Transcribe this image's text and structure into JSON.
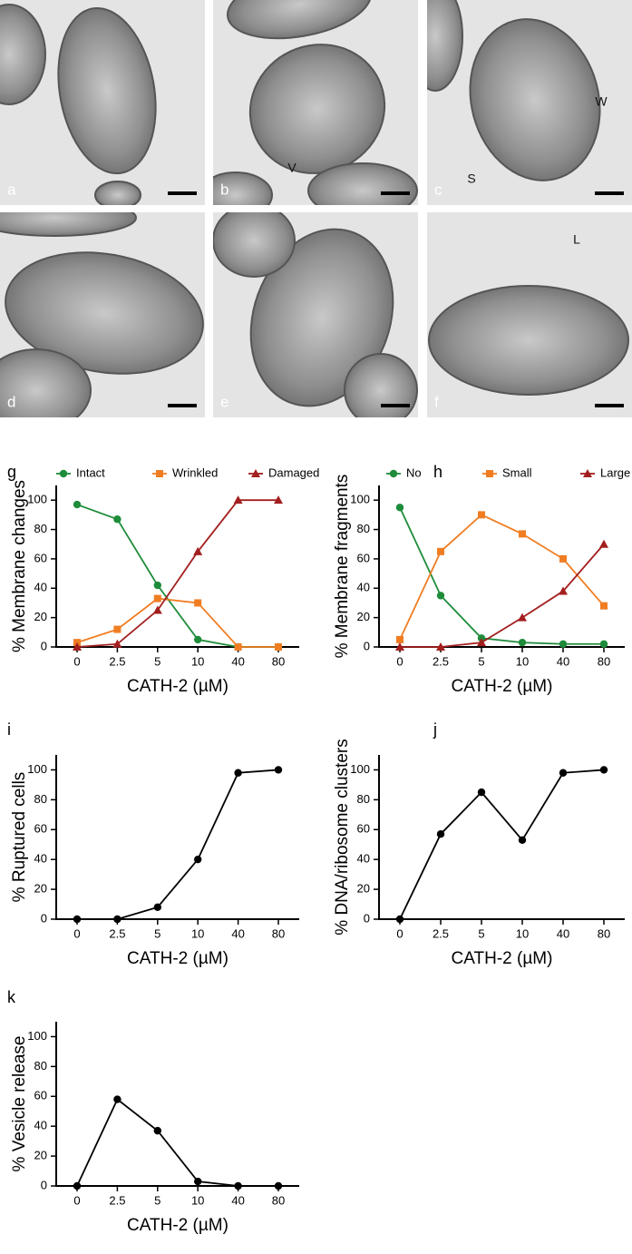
{
  "micrographs": [
    {
      "label": "a"
    },
    {
      "label": "b"
    },
    {
      "label": "c"
    },
    {
      "label": "d"
    },
    {
      "label": "e"
    },
    {
      "label": "f"
    }
  ],
  "annotations": [
    "V",
    "S",
    "W",
    "L"
  ],
  "chart_data": [
    {
      "type": "line",
      "label": "g",
      "ylabel": "% Membrane changes",
      "xlabel": "CATH-2 (µM)",
      "categories": [
        "0",
        "2.5",
        "5",
        "10",
        "40",
        "80"
      ],
      "series": [
        {
          "name": "Intact",
          "color": "#1e8c3a",
          "marker": "circle",
          "values": [
            97,
            87,
            42,
            5,
            0,
            0
          ]
        },
        {
          "name": "Wrinkled",
          "color": "#f07d22",
          "marker": "square",
          "values": [
            3,
            12,
            33,
            30,
            0,
            0
          ]
        },
        {
          "name": "Damaged",
          "color": "#a31f1f",
          "marker": "triangle",
          "values": [
            0,
            2,
            25,
            65,
            100,
            100
          ]
        }
      ],
      "ylim": [
        0,
        110
      ],
      "yticks": [
        0,
        20,
        40,
        60,
        80,
        100
      ]
    },
    {
      "type": "line",
      "label": "h",
      "ylabel": "% Membrane fragments",
      "xlabel": "CATH-2 (µM)",
      "categories": [
        "0",
        "2.5",
        "5",
        "10",
        "40",
        "80"
      ],
      "series": [
        {
          "name": "No",
          "color": "#1e8c3a",
          "marker": "circle",
          "values": [
            95,
            35,
            6,
            3,
            2,
            2
          ]
        },
        {
          "name": "Small",
          "color": "#f07d22",
          "marker": "square",
          "values": [
            5,
            65,
            90,
            77,
            60,
            28
          ]
        },
        {
          "name": "Large",
          "color": "#a31f1f",
          "marker": "triangle",
          "values": [
            0,
            0,
            3,
            20,
            38,
            70
          ]
        }
      ],
      "ylim": [
        0,
        110
      ],
      "yticks": [
        0,
        20,
        40,
        60,
        80,
        100
      ]
    },
    {
      "type": "line",
      "label": "i",
      "ylabel": "% Ruptured cells",
      "xlabel": "CATH-2 (µM)",
      "categories": [
        "0",
        "2.5",
        "5",
        "10",
        "40",
        "80"
      ],
      "series": [
        {
          "color": "#000000",
          "marker": "circle",
          "values": [
            0,
            0,
            8,
            40,
            98,
            100
          ]
        }
      ],
      "ylim": [
        0,
        110
      ],
      "yticks": [
        0,
        20,
        40,
        60,
        80,
        100
      ]
    },
    {
      "type": "line",
      "label": "j",
      "ylabel": "% DNA/ribosome clusters",
      "xlabel": "CATH-2 (µM)",
      "categories": [
        "0",
        "2.5",
        "5",
        "10",
        "40",
        "80"
      ],
      "series": [
        {
          "color": "#000000",
          "marker": "circle",
          "values": [
            0,
            57,
            85,
            53,
            98,
            100
          ]
        }
      ],
      "ylim": [
        0,
        110
      ],
      "yticks": [
        0,
        20,
        40,
        60,
        80,
        100
      ]
    },
    {
      "type": "line",
      "label": "k",
      "ylabel": "% Vesicle release",
      "xlabel": "CATH-2 (µM)",
      "categories": [
        "0",
        "2.5",
        "5",
        "10",
        "40",
        "80"
      ],
      "series": [
        {
          "color": "#000000",
          "marker": "circle",
          "values": [
            0,
            58,
            37,
            3,
            0,
            0
          ]
        }
      ],
      "ylim": [
        0,
        110
      ],
      "yticks": [
        0,
        20,
        40,
        60,
        80,
        100
      ]
    }
  ]
}
